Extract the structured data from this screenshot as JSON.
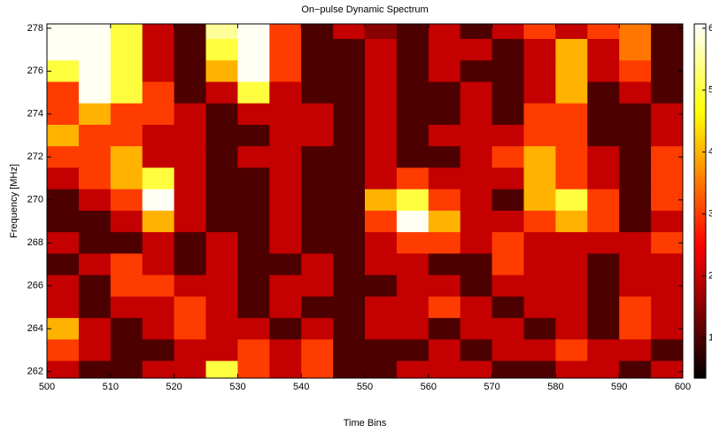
{
  "chart_data": {
    "type": "heatmap",
    "title": "On−pulse Dynamic Spectrum",
    "x_label": "Time Bins",
    "y_label": "Frequency [MHz]",
    "colormap": "hot",
    "x": [
      502.5,
      507.5,
      512.5,
      517.5,
      522.5,
      527.5,
      532.5,
      537.5,
      542.5,
      547.5,
      552.5,
      557.5,
      562.5,
      567.5,
      572.5,
      577.5,
      582.5,
      587.5,
      592.5,
      597.5
    ],
    "y": [
      278,
      277,
      276,
      275,
      274,
      273,
      272,
      271,
      270,
      269,
      268,
      267,
      266,
      265,
      264,
      263,
      262
    ],
    "z": [
      [
        6,
        6,
        5,
        2,
        1,
        5.5,
        6,
        3,
        1,
        2,
        1.5,
        1,
        2,
        1,
        2,
        3,
        2,
        3,
        3.5,
        1
      ],
      [
        6,
        6,
        5,
        2,
        1,
        5,
        6,
        3,
        1,
        1,
        2,
        1,
        2,
        2,
        1,
        2,
        4,
        2,
        3.5,
        1
      ],
      [
        5,
        6,
        5,
        2,
        1,
        4,
        6,
        3,
        1,
        1,
        2,
        1,
        2,
        1,
        1,
        2,
        4,
        2,
        3,
        1
      ],
      [
        3,
        6,
        5,
        3,
        1,
        2,
        5,
        2,
        1,
        1,
        2,
        1,
        1,
        2,
        1,
        2,
        4,
        1,
        2,
        1
      ],
      [
        3,
        4,
        3,
        3,
        2,
        1,
        2,
        2,
        2,
        1,
        2,
        1,
        1,
        2,
        1,
        3,
        3,
        1,
        1,
        2
      ],
      [
        4,
        3,
        3,
        2,
        2,
        1,
        1,
        2,
        2,
        1,
        2,
        1,
        2,
        2,
        2,
        3,
        3,
        1,
        1,
        2
      ],
      [
        3,
        3,
        4,
        2,
        2,
        1,
        2,
        2,
        1,
        1,
        2,
        1,
        1,
        2,
        3,
        4,
        3,
        2,
        1,
        3
      ],
      [
        2,
        3,
        4,
        5,
        2,
        1,
        1,
        2,
        1,
        1,
        2,
        3,
        2,
        2,
        2,
        4,
        3,
        2,
        1,
        3
      ],
      [
        1,
        2,
        3,
        6,
        2,
        1,
        1,
        2,
        1,
        1,
        4,
        5,
        3,
        2,
        1,
        4,
        5,
        3,
        1,
        3
      ],
      [
        1,
        1,
        2,
        4,
        2,
        1,
        1,
        2,
        1,
        1,
        3,
        6,
        4,
        2,
        2,
        3,
        4,
        3,
        1,
        2
      ],
      [
        2,
        1,
        1,
        2,
        1,
        2,
        1,
        2,
        1,
        1,
        2,
        3,
        3,
        2,
        3,
        2,
        2,
        2,
        2,
        3
      ],
      [
        1,
        2,
        3,
        2,
        1,
        2,
        1,
        1,
        2,
        1,
        2,
        2,
        1,
        1,
        3,
        2,
        2,
        1,
        2,
        2
      ],
      [
        2,
        1,
        3,
        3,
        2,
        2,
        1,
        2,
        2,
        1,
        1,
        2,
        2,
        1,
        2,
        2,
        2,
        1,
        2,
        2
      ],
      [
        2,
        1,
        2,
        2,
        3,
        2,
        1,
        2,
        1,
        1,
        2,
        2,
        3,
        2,
        1,
        2,
        2,
        1,
        3,
        2
      ],
      [
        4,
        2,
        1,
        2,
        3,
        2,
        2,
        1,
        2,
        1,
        2,
        2,
        1,
        2,
        2,
        1,
        2,
        1,
        3,
        2
      ],
      [
        3,
        2,
        1,
        1,
        2,
        2,
        3,
        2,
        3,
        1,
        1,
        1,
        2,
        1,
        2,
        2,
        3,
        2,
        2,
        1
      ],
      [
        2,
        1,
        1,
        2,
        2,
        5,
        3,
        2,
        3,
        1,
        1,
        2,
        2,
        2,
        1,
        1,
        2,
        2,
        1,
        2
      ]
    ],
    "xlim": [
      500,
      600
    ],
    "xticks": [
      500,
      510,
      520,
      530,
      540,
      550,
      560,
      570,
      580,
      590,
      600
    ],
    "ylim": [
      261.7,
      278.2
    ],
    "yticks": [
      262,
      264,
      266,
      268,
      270,
      272,
      274,
      276,
      278
    ],
    "clim": [
      0.35,
      6.07
    ],
    "cticks": [
      1,
      2,
      3,
      4,
      5,
      6
    ]
  }
}
